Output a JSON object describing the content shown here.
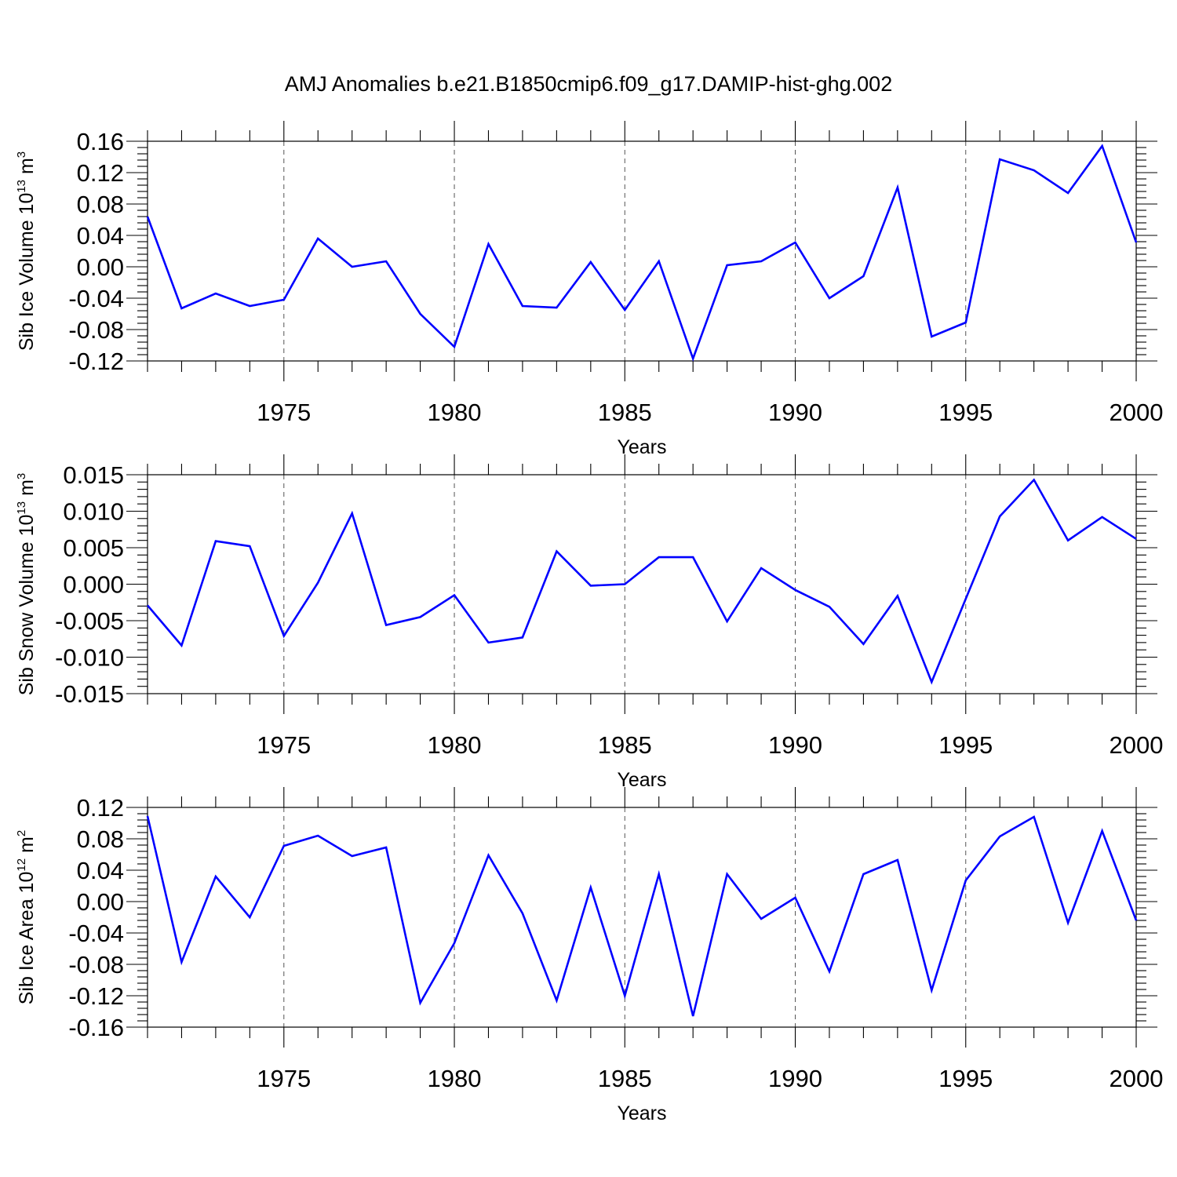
{
  "title": "AMJ Anomalies b.e21.B1850cmip6.f09_g17.DAMIP-hist-ghg.002",
  "line_color": "#0000ff",
  "chart_data": [
    {
      "type": "line",
      "name": "ice-volume",
      "ylabel_main": "Sib Ice Volume 10",
      "ylabel_exp": "13",
      "ylabel_unit": " m",
      "ylabel_unit_exp": "3",
      "xlabel": "Years",
      "xlim": [
        1971,
        2000
      ],
      "ylim": [
        -0.12,
        0.16
      ],
      "yticks": [
        -0.12,
        -0.08,
        -0.04,
        0.0,
        0.04,
        0.08,
        0.12,
        0.16
      ],
      "ytick_labels": [
        "-0.12",
        "-0.08",
        "-0.04",
        "0.00",
        "0.04",
        "0.08",
        "0.12",
        "0.16"
      ],
      "xticks": [
        1975,
        1980,
        1985,
        1990,
        1995,
        2000
      ],
      "xtick_labels": [
        "1975",
        "1980",
        "1985",
        "1990",
        "1995",
        "2000"
      ],
      "grid_x": [
        1975,
        1980,
        1985,
        1990,
        1995
      ],
      "x": [
        1971,
        1972,
        1973,
        1974,
        1975,
        1976,
        1977,
        1978,
        1979,
        1980,
        1981,
        1982,
        1983,
        1984,
        1985,
        1986,
        1987,
        1988,
        1989,
        1990,
        1991,
        1992,
        1993,
        1994,
        1995,
        1996,
        1997,
        1998,
        1999,
        2000
      ],
      "y": [
        0.064,
        -0.053,
        -0.034,
        -0.05,
        -0.042,
        0.036,
        0.0,
        0.007,
        -0.06,
        -0.102,
        0.029,
        -0.05,
        -0.052,
        0.006,
        -0.055,
        0.007,
        -0.117,
        0.002,
        0.007,
        0.031,
        -0.04,
        -0.012,
        0.101,
        -0.089,
        -0.071,
        0.137,
        0.123,
        0.094,
        0.154,
        0.031
      ]
    },
    {
      "type": "line",
      "name": "snow-volume",
      "ylabel_main": "Sib Snow Volume 10",
      "ylabel_exp": "13",
      "ylabel_unit": " m",
      "ylabel_unit_exp": "3",
      "xlabel": "Years",
      "xlim": [
        1971,
        2000
      ],
      "ylim": [
        -0.015,
        0.015
      ],
      "yticks": [
        -0.015,
        -0.01,
        -0.005,
        0.0,
        0.005,
        0.01,
        0.015
      ],
      "ytick_labels": [
        "-0.015",
        "-0.010",
        "-0.005",
        "0.000",
        "0.005",
        "0.010",
        "0.015"
      ],
      "xticks": [
        1975,
        1980,
        1985,
        1990,
        1995,
        2000
      ],
      "xtick_labels": [
        "1975",
        "1980",
        "1985",
        "1990",
        "1995",
        "2000"
      ],
      "grid_x": [
        1975,
        1980,
        1985,
        1990,
        1995
      ],
      "x": [
        1971,
        1972,
        1973,
        1974,
        1975,
        1976,
        1977,
        1978,
        1979,
        1980,
        1981,
        1982,
        1983,
        1984,
        1985,
        1986,
        1987,
        1988,
        1989,
        1990,
        1991,
        1992,
        1993,
        1994,
        1995,
        1996,
        1997,
        1998,
        1999,
        2000
      ],
      "y": [
        -0.0029,
        -0.0084,
        0.0059,
        0.0052,
        -0.0071,
        0.0002,
        0.0097,
        -0.0056,
        -0.0045,
        -0.0015,
        -0.008,
        -0.0073,
        0.0045,
        -0.0002,
        0.0,
        0.0037,
        0.0037,
        -0.0051,
        0.0022,
        -0.0008,
        -0.0031,
        -0.0082,
        -0.0016,
        -0.0134,
        -0.002,
        0.0093,
        0.0143,
        0.006,
        0.0092,
        0.0062
      ]
    },
    {
      "type": "line",
      "name": "ice-area",
      "ylabel_main": "Sib Ice Area 10",
      "ylabel_exp": "12",
      "ylabel_unit": " m",
      "ylabel_unit_exp": "2",
      "xlabel": "Years",
      "xlim": [
        1971,
        2000
      ],
      "ylim": [
        -0.16,
        0.12
      ],
      "yticks": [
        -0.16,
        -0.12,
        -0.08,
        -0.04,
        0.0,
        0.04,
        0.08,
        0.12
      ],
      "ytick_labels": [
        "-0.16",
        "-0.12",
        "-0.08",
        "-0.04",
        "0.00",
        "0.04",
        "0.08",
        "0.12"
      ],
      "xticks": [
        1975,
        1980,
        1985,
        1990,
        1995,
        2000
      ],
      "xtick_labels": [
        "1975",
        "1980",
        "1985",
        "1990",
        "1995",
        "2000"
      ],
      "grid_x": [
        1975,
        1980,
        1985,
        1990,
        1995
      ],
      "x": [
        1971,
        1972,
        1973,
        1974,
        1975,
        1976,
        1977,
        1978,
        1979,
        1980,
        1981,
        1982,
        1983,
        1984,
        1985,
        1986,
        1987,
        1988,
        1989,
        1990,
        1991,
        1992,
        1993,
        1994,
        1995,
        1996,
        1997,
        1998,
        1999,
        2000
      ],
      "y": [
        0.109,
        -0.077,
        0.032,
        -0.02,
        0.071,
        0.084,
        0.058,
        0.069,
        -0.129,
        -0.053,
        0.059,
        -0.015,
        -0.126,
        0.018,
        -0.12,
        0.035,
        -0.146,
        0.035,
        -0.022,
        0.005,
        -0.089,
        0.035,
        0.053,
        -0.113,
        0.027,
        0.083,
        0.108,
        -0.027,
        0.09,
        -0.024
      ]
    }
  ]
}
